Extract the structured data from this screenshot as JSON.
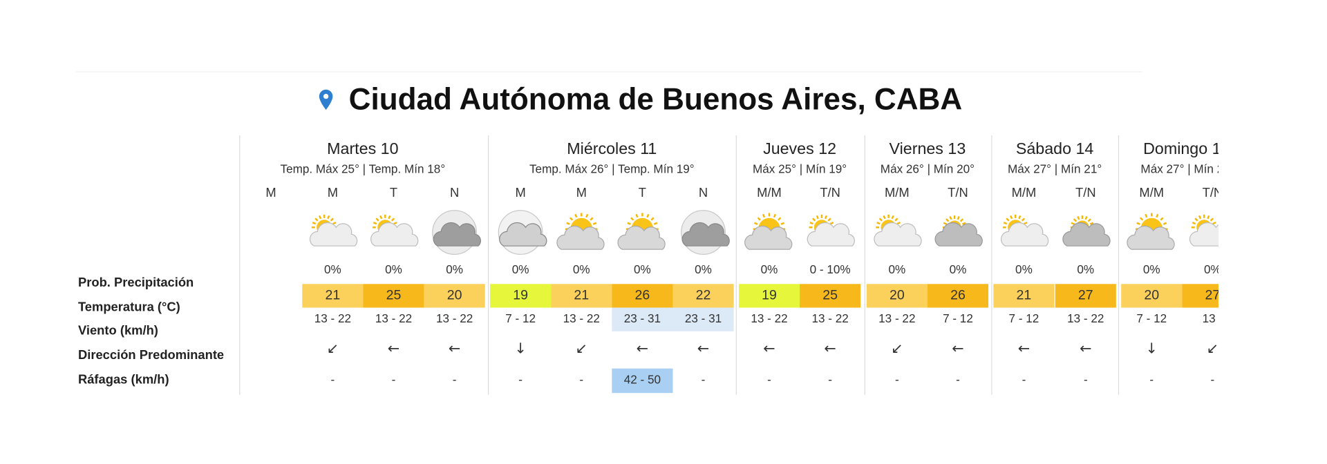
{
  "title": "Ciudad Autónoma de Buenos Aires, CABA",
  "row_labels": [
    "Prob. Precipitación",
    "Temperatura (°C)",
    "Viento (km/h)",
    "Dirección Predominante",
    "Ráfagas (km/h)"
  ],
  "days": [
    {
      "name": "Martes 10",
      "subtitle": "Temp. Máx 25° | Temp. Mín 18°",
      "periods": [
        {
          "label": "M",
          "precip": null,
          "temp": null,
          "wind": null,
          "dir": null,
          "gust": null
        },
        {
          "label": "M",
          "precip": "0%",
          "temp": 21,
          "wind": "13 - 22",
          "dir": "↙",
          "gust": "-"
        },
        {
          "label": "T",
          "precip": "0%",
          "temp": 25,
          "wind": "13 - 22",
          "dir": "←",
          "gust": "-"
        },
        {
          "label": "N",
          "precip": "0%",
          "temp": 20,
          "wind": "13 - 22",
          "dir": "←",
          "gust": "-"
        }
      ]
    },
    {
      "name": "Miércoles 11",
      "subtitle": "Temp. Máx 26° | Temp. Mín 19°",
      "periods": [
        {
          "label": "M",
          "precip": "0%",
          "temp": 19,
          "wind": "7 - 12",
          "dir": "↓",
          "gust": "-"
        },
        {
          "label": "M",
          "precip": "0%",
          "temp": 21,
          "wind": "13 - 22",
          "dir": "↙",
          "gust": "-"
        },
        {
          "label": "T",
          "precip": "0%",
          "temp": 26,
          "wind": "23 - 31",
          "dir": "←",
          "gust": "42 - 50"
        },
        {
          "label": "N",
          "precip": "0%",
          "temp": 22,
          "wind": "23 - 31",
          "dir": "←",
          "gust": "-"
        }
      ]
    },
    {
      "name": "Jueves 12",
      "subtitle": "Máx 25° | Mín 19°",
      "periods": [
        {
          "label": "M/M",
          "precip": "0%",
          "temp": 19,
          "wind": "13 - 22",
          "dir": "←",
          "gust": "-"
        },
        {
          "label": "T/N",
          "precip": "0 - 10%",
          "temp": 25,
          "wind": "13 - 22",
          "dir": "←",
          "gust": "-"
        }
      ]
    },
    {
      "name": "Viernes 13",
      "subtitle": "Máx 26° | Mín 20°",
      "periods": [
        {
          "label": "M/M",
          "precip": "0%",
          "temp": 20,
          "wind": "13 - 22",
          "dir": "↙",
          "gust": "-"
        },
        {
          "label": "T/N",
          "precip": "0%",
          "temp": 26,
          "wind": "7 - 12",
          "dir": "←",
          "gust": "-"
        }
      ]
    },
    {
      "name": "Sábado 14",
      "subtitle": "Máx 27° | Mín 21°",
      "periods": [
        {
          "label": "M/M",
          "precip": "0%",
          "temp": 21,
          "wind": "7 - 12",
          "dir": "←",
          "gust": "-"
        },
        {
          "label": "T/N",
          "precip": "0%",
          "temp": 27,
          "wind": "13 - 22",
          "dir": "←",
          "gust": "-"
        }
      ]
    },
    {
      "name": "Domingo 1",
      "subtitle": "Máx 27° | Mín 2",
      "periods": [
        {
          "label": "M/M",
          "precip": "0%",
          "temp": 20,
          "wind": "7 - 12",
          "dir": "↓",
          "gust": "-"
        },
        {
          "label": "T/N",
          "precip": "0%",
          "temp": 27,
          "wind": "13 -",
          "dir": "↙",
          "gust": "-"
        }
      ]
    }
  ]
}
